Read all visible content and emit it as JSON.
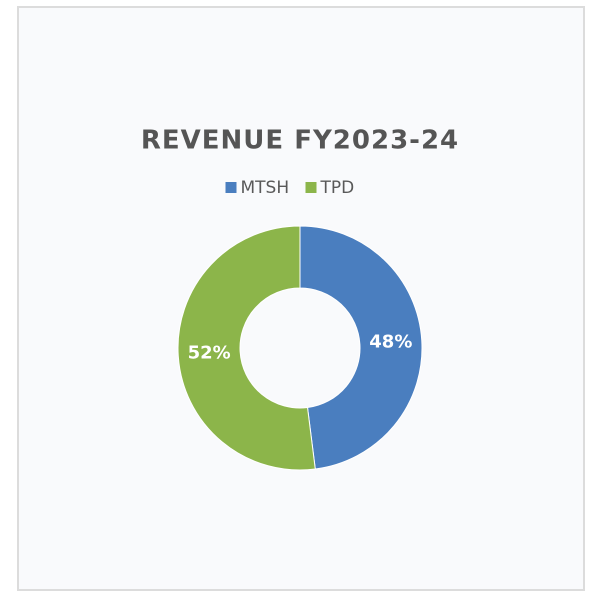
{
  "chart_data": {
    "type": "pie",
    "title": "REVENUE FY2023-24",
    "categories": [
      "MTSH",
      "TPD"
    ],
    "values": [
      48,
      52
    ],
    "value_labels": [
      "48%",
      "52%"
    ],
    "colors": [
      "#4a7ebf",
      "#8cb54a"
    ],
    "legend": "top",
    "donut": true
  }
}
